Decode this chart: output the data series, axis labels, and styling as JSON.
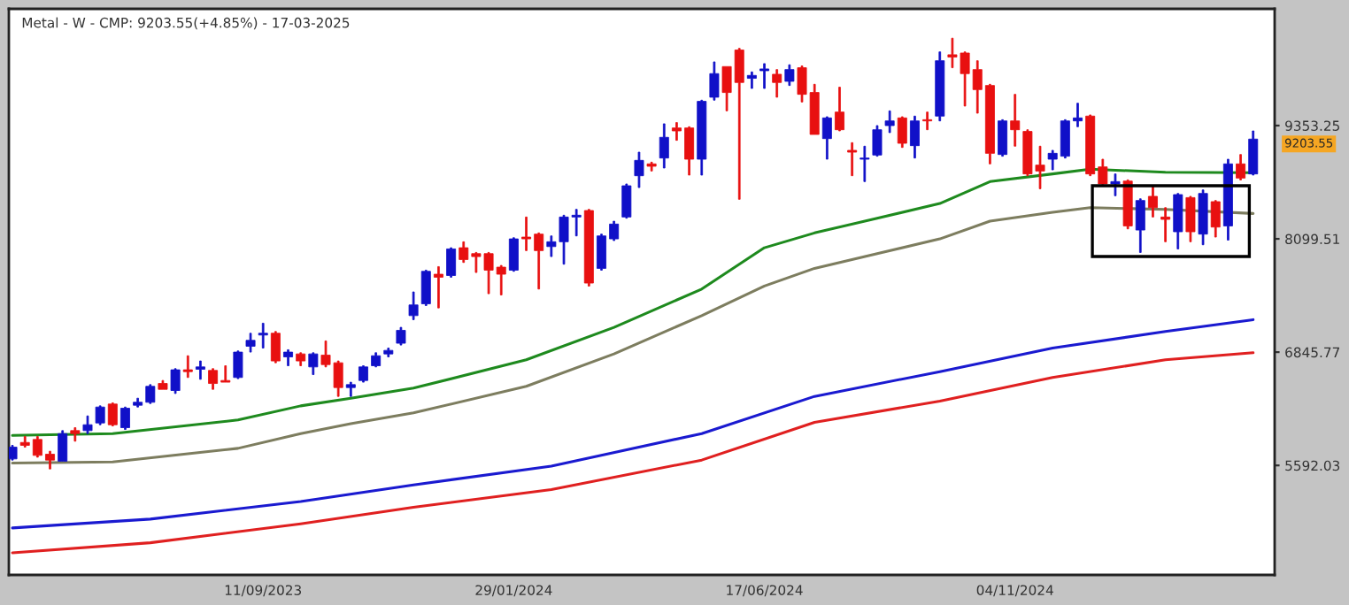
{
  "chart_data": {
    "type": "candlestick",
    "title": "Metal - W - CMP: 9203.55(+4.85%) - 17-03-2025",
    "x": [
      "2023-04-24",
      "2023-05-01",
      "2023-05-08",
      "2023-05-15",
      "2023-05-22",
      "2023-05-29",
      "2023-06-05",
      "2023-06-12",
      "2023-06-19",
      "2023-06-26",
      "2023-07-03",
      "2023-07-10",
      "2023-07-17",
      "2023-07-24",
      "2023-07-31",
      "2023-08-07",
      "2023-08-14",
      "2023-08-21",
      "2023-08-28",
      "2023-09-04",
      "2023-09-11",
      "2023-09-18",
      "2023-09-25",
      "2023-10-02",
      "2023-10-09",
      "2023-10-16",
      "2023-10-23",
      "2023-10-30",
      "2023-11-06",
      "2023-11-13",
      "2023-11-20",
      "2023-11-27",
      "2023-12-04",
      "2023-12-11",
      "2023-12-18",
      "2023-12-25",
      "2024-01-01",
      "2024-01-08",
      "2024-01-15",
      "2024-01-22",
      "2024-01-29",
      "2024-02-05",
      "2024-02-12",
      "2024-02-19",
      "2024-02-26",
      "2024-03-04",
      "2024-03-11",
      "2024-03-18",
      "2024-03-25",
      "2024-04-01",
      "2024-04-08",
      "2024-04-15",
      "2024-04-22",
      "2024-04-29",
      "2024-05-06",
      "2024-05-13",
      "2024-05-20",
      "2024-05-27",
      "2024-06-03",
      "2024-06-10",
      "2024-06-17",
      "2024-06-24",
      "2024-07-01",
      "2024-07-08",
      "2024-07-15",
      "2024-07-22",
      "2024-07-29",
      "2024-08-05",
      "2024-08-12",
      "2024-08-19",
      "2024-08-26",
      "2024-09-02",
      "2024-09-09",
      "2024-09-16",
      "2024-09-23",
      "2024-09-30",
      "2024-10-07",
      "2024-10-14",
      "2024-10-21",
      "2024-10-28",
      "2024-11-04",
      "2024-11-11",
      "2024-11-18",
      "2024-11-25",
      "2024-12-02",
      "2024-12-09",
      "2024-12-16",
      "2024-12-23",
      "2024-12-30",
      "2025-01-06",
      "2025-01-13",
      "2025-01-20",
      "2025-01-27",
      "2025-02-03",
      "2025-02-10",
      "2025-02-17",
      "2025-02-24",
      "2025-03-03",
      "2025-03-10",
      "2025-03-17"
    ],
    "ohlc": [
      [
        5664,
        5814,
        5651,
        5794
      ],
      [
        5846,
        5912,
        5794,
        5814
      ],
      [
        5879,
        5912,
        5683,
        5703
      ],
      [
        5716,
        5749,
        5553,
        5651
      ],
      [
        5638,
        5977,
        5638,
        5944
      ],
      [
        5977,
        6010,
        5860,
        5944
      ],
      [
        5977,
        6140,
        5944,
        6042
      ],
      [
        6062,
        6251,
        6042,
        6238
      ],
      [
        6271,
        6284,
        6029,
        6042
      ],
      [
        6010,
        6238,
        5990,
        6225
      ],
      [
        6258,
        6336,
        6238,
        6291
      ],
      [
        6291,
        6486,
        6277,
        6467
      ],
      [
        6499,
        6532,
        6434,
        6434
      ],
      [
        6421,
        6663,
        6388,
        6650
      ],
      [
        6650,
        6806,
        6565,
        6630
      ],
      [
        6656,
        6748,
        6545,
        6682
      ],
      [
        6643,
        6663,
        6434,
        6499
      ],
      [
        6532,
        6695,
        6513,
        6513
      ],
      [
        6565,
        6859,
        6552,
        6846
      ],
      [
        6911,
        7055,
        6846,
        6976
      ],
      [
        7035,
        7166,
        6891,
        7055
      ],
      [
        7055,
        7074,
        6728,
        6748
      ],
      [
        6793,
        6872,
        6695,
        6846
      ],
      [
        6826,
        6839,
        6695,
        6748
      ],
      [
        6682,
        6839,
        6597,
        6826
      ],
      [
        6813,
        6970,
        6682,
        6708
      ],
      [
        6728,
        6748,
        6356,
        6454
      ],
      [
        6454,
        6513,
        6356,
        6486
      ],
      [
        6532,
        6695,
        6513,
        6682
      ],
      [
        6695,
        6839,
        6682,
        6806
      ],
      [
        6826,
        6891,
        6793,
        6865
      ],
      [
        6944,
        7120,
        6924,
        7087
      ],
      [
        7250,
        7512,
        7205,
        7368
      ],
      [
        7381,
        7753,
        7361,
        7740
      ],
      [
        7708,
        7792,
        7335,
        7675
      ],
      [
        7694,
        8001,
        7675,
        7988
      ],
      [
        8001,
        8067,
        7838,
        7871
      ],
      [
        7936,
        7949,
        7727,
        7903
      ],
      [
        7936,
        7949,
        7492,
        7753
      ],
      [
        7786,
        7805,
        7479,
        7708
      ],
      [
        7753,
        8112,
        7740,
        8099
      ],
      [
        8119,
        8341,
        7969,
        8099
      ],
      [
        8152,
        8165,
        7544,
        7969
      ],
      [
        8014,
        8132,
        7903,
        8067
      ],
      [
        8067,
        8361,
        7819,
        8341
      ],
      [
        8341,
        8426,
        8132,
        8361
      ],
      [
        8413,
        8426,
        7577,
        7610
      ],
      [
        7773,
        8152,
        7753,
        8132
      ],
      [
        8099,
        8295,
        8080,
        8263
      ],
      [
        8341,
        8707,
        8328,
        8687
      ],
      [
        8798,
        9059,
        8667,
        8968
      ],
      [
        8929,
        8948,
        8850,
        8903
      ],
      [
        8994,
        9373,
        8883,
        9223
      ],
      [
        9327,
        9386,
        9190,
        9294
      ],
      [
        9327,
        9340,
        8805,
        8981
      ],
      [
        8981,
        9634,
        8805,
        9621
      ],
      [
        9667,
        10058,
        9634,
        9928
      ],
      [
        10006,
        10006,
        9516,
        9719
      ],
      [
        10189,
        10208,
        8537,
        9830
      ],
      [
        9876,
        9947,
        9764,
        9908
      ],
      [
        9960,
        10039,
        9764,
        9980
      ],
      [
        9921,
        9973,
        9667,
        9830
      ],
      [
        9843,
        10026,
        9797,
        9973
      ],
      [
        9993,
        10013,
        9614,
        9699
      ],
      [
        9719,
        9810,
        9255,
        9255
      ],
      [
        9209,
        9451,
        8981,
        9438
      ],
      [
        9503,
        9778,
        9294,
        9307
      ],
      [
        9079,
        9164,
        8798,
        9059
      ],
      [
        8981,
        9125,
        8733,
        8994
      ],
      [
        9027,
        9353,
        9014,
        9307
      ],
      [
        9353,
        9516,
        9275,
        9405
      ],
      [
        9438,
        9451,
        9111,
        9157
      ],
      [
        9131,
        9458,
        8994,
        9405
      ],
      [
        9418,
        9503,
        9307,
        9405
      ],
      [
        9458,
        10169,
        9405,
        10071
      ],
      [
        10137,
        10320,
        9993,
        10111
      ],
      [
        10156,
        10169,
        9569,
        9928
      ],
      [
        9973,
        10071,
        9490,
        9751
      ],
      [
        9797,
        9810,
        8929,
        9046
      ],
      [
        9033,
        9418,
        9014,
        9405
      ],
      [
        9405,
        9699,
        9125,
        9307
      ],
      [
        9288,
        9307,
        8798,
        8818
      ],
      [
        8916,
        9125,
        8654,
        8850
      ],
      [
        8981,
        9079,
        8863,
        9046
      ],
      [
        9014,
        9418,
        8994,
        9405
      ],
      [
        9405,
        9601,
        9340,
        9438
      ],
      [
        9458,
        9471,
        8798,
        8818
      ],
      [
        8896,
        8981,
        8687,
        8707
      ],
      [
        8707,
        8818,
        8576,
        8733
      ],
      [
        8739,
        8752,
        8210,
        8243
      ],
      [
        8197,
        8543,
        7949,
        8524
      ],
      [
        8570,
        8687,
        8341,
        8445
      ],
      [
        8341,
        8445,
        8067,
        8315
      ],
      [
        8178,
        8602,
        7988,
        8589
      ],
      [
        8556,
        8570,
        8067,
        8178
      ],
      [
        8152,
        8641,
        8034,
        8602
      ],
      [
        8511,
        8524,
        8119,
        8230
      ],
      [
        8243,
        8981,
        8086,
        8929
      ],
      [
        8929,
        9033,
        8752,
        8772
      ],
      [
        8818,
        9294,
        8805,
        9203.55
      ]
    ],
    "series": [
      {
        "type": "line",
        "color": "#1e8a1e",
        "x": [
          "2023-04-24",
          "2023-06-19",
          "2023-08-28",
          "2023-10-02",
          "2023-10-30",
          "2023-12-04",
          "2024-02-05",
          "2024-03-25",
          "2024-05-13",
          "2024-06-17",
          "2024-07-15",
          "2024-08-19",
          "2024-09-23",
          "2024-10-21",
          "2024-11-25",
          "2024-12-16",
          "2025-01-27",
          "2025-03-17"
        ],
        "values": [
          5925,
          5944,
          6095,
          6251,
          6336,
          6447,
          6761,
          7120,
          7544,
          8001,
          8165,
          8328,
          8491,
          8733,
          8818,
          8870,
          8837,
          8831
        ]
      },
      {
        "type": "line",
        "color": "#7d7d5f",
        "x": [
          "2023-04-24",
          "2023-06-19",
          "2023-08-28",
          "2023-10-02",
          "2023-10-30",
          "2023-12-04",
          "2024-02-05",
          "2024-03-25",
          "2024-05-13",
          "2024-06-17",
          "2024-07-15",
          "2024-08-19",
          "2024-09-23",
          "2024-10-21",
          "2024-11-25",
          "2024-12-16",
          "2025-01-27",
          "2025-03-17"
        ],
        "values": [
          5618,
          5631,
          5781,
          5944,
          6055,
          6173,
          6467,
          6826,
          7250,
          7577,
          7773,
          7936,
          8099,
          8295,
          8393,
          8445,
          8426,
          8380
        ]
      },
      {
        "type": "line",
        "color": "#1a1ad0",
        "x": [
          "2023-04-24",
          "2023-07-10",
          "2023-10-02",
          "2023-12-04",
          "2024-02-19",
          "2024-05-13",
          "2024-07-15",
          "2024-09-23",
          "2024-11-25",
          "2025-01-27",
          "2025-03-17"
        ],
        "values": [
          4900,
          4998,
          5193,
          5376,
          5585,
          5944,
          6356,
          6630,
          6891,
          7074,
          7205
        ]
      },
      {
        "type": "line",
        "color": "#e02020",
        "x": [
          "2023-04-24",
          "2023-07-10",
          "2023-10-02",
          "2023-12-04",
          "2024-02-19",
          "2024-05-13",
          "2024-07-15",
          "2024-09-23",
          "2024-11-25",
          "2025-01-27",
          "2025-03-17"
        ],
        "values": [
          4625,
          4736,
          4945,
          5128,
          5324,
          5651,
          6069,
          6304,
          6565,
          6761,
          6839
        ]
      }
    ],
    "xlim": [
      "2023-04-22",
      "2025-03-29"
    ],
    "xticks": [
      {
        "value": "2023-09-11",
        "label": "11/09/2023"
      },
      {
        "value": "2024-01-29",
        "label": "29/01/2024"
      },
      {
        "value": "2024-06-17",
        "label": "17/06/2024"
      },
      {
        "value": "2024-11-04",
        "label": "04/11/2024"
      }
    ],
    "ylim": [
      4380,
      10645
    ],
    "yticks": [
      5592.03,
      6845.77,
      8099.51,
      9353.25
    ],
    "annotations": [
      "9203.55"
    ],
    "grid": false
  }
}
